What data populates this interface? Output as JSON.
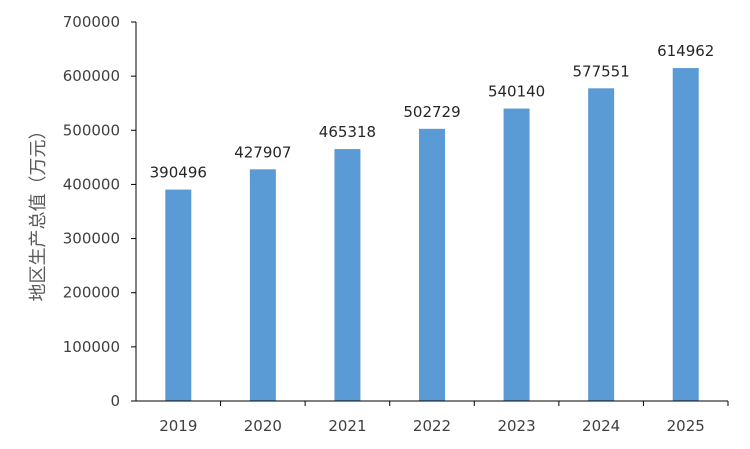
{
  "chart_data": {
    "type": "bar",
    "categories": [
      "2019",
      "2020",
      "2021",
      "2022",
      "2023",
      "2024",
      "2025"
    ],
    "values": [
      390496,
      427907,
      465318,
      502729,
      540140,
      577551,
      614962
    ],
    "data_labels": [
      "390496",
      "427907",
      "465318",
      "502729",
      "540140",
      "577551",
      "614962"
    ],
    "ylabel": "地区生产总值（万元）",
    "ylim": [
      0,
      700000
    ],
    "yticks": [
      0,
      100000,
      200000,
      300000,
      400000,
      500000,
      600000,
      700000
    ],
    "ytick_labels": [
      "0",
      "100000",
      "200000",
      "300000",
      "400000",
      "500000",
      "600000",
      "700000"
    ],
    "bar_color": "#5b9bd5",
    "grid": false,
    "legend": "none"
  }
}
